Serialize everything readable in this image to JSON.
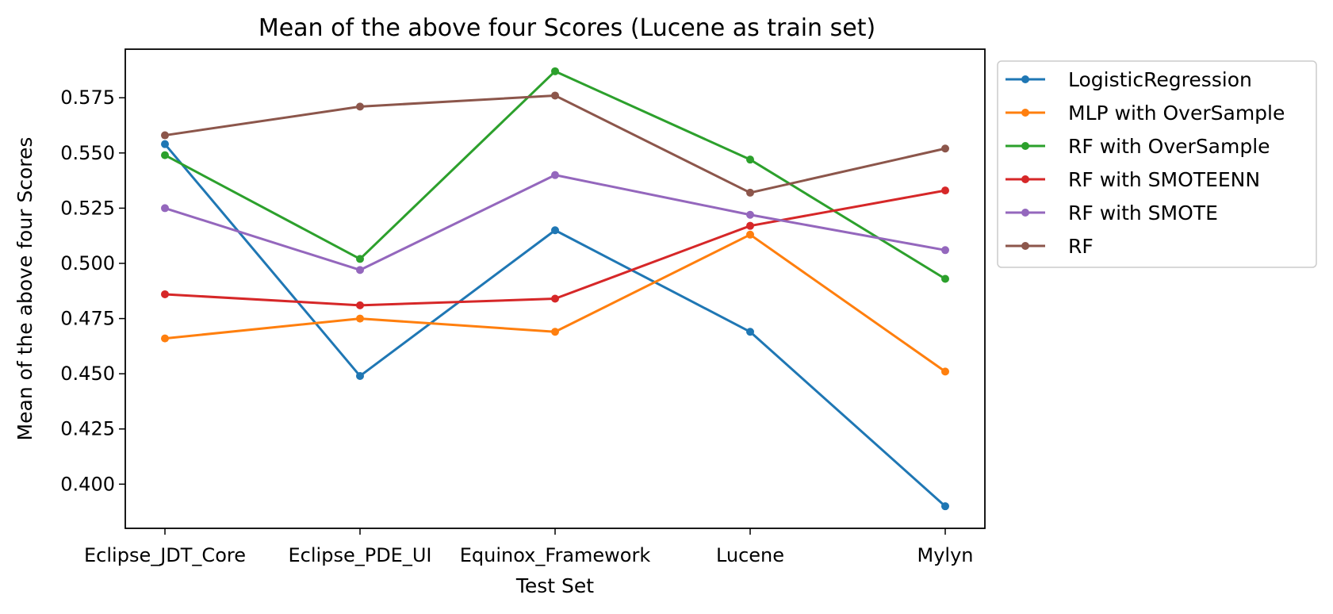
{
  "chart_data": {
    "type": "line",
    "title": "Mean of the above four Scores (Lucene as train set)",
    "xlabel": "Test Set",
    "ylabel": "Mean of the above four Scores",
    "categories": [
      "Eclipse_JDT_Core",
      "Eclipse_PDE_UI",
      "Equinox_Framework",
      "Lucene",
      "Mylyn"
    ],
    "ylim": [
      0.38,
      0.597
    ],
    "yticks": [
      0.4,
      0.425,
      0.45,
      0.475,
      0.5,
      0.525,
      0.55,
      0.575
    ],
    "ytick_labels": [
      "0.400",
      "0.425",
      "0.450",
      "0.475",
      "0.500",
      "0.525",
      "0.550",
      "0.575"
    ],
    "grid": false,
    "legend_position": "outside-right-top",
    "series": [
      {
        "name": "LogisticRegression",
        "color": "#1f77b4",
        "values": [
          0.554,
          0.449,
          0.515,
          0.469,
          0.39
        ]
      },
      {
        "name": "MLP with OverSample",
        "color": "#ff7f0e",
        "values": [
          0.466,
          0.475,
          0.469,
          0.513,
          0.451
        ]
      },
      {
        "name": "RF with OverSample",
        "color": "#2ca02c",
        "values": [
          0.549,
          0.502,
          0.587,
          0.547,
          0.493
        ]
      },
      {
        "name": "RF with SMOTEENN",
        "color": "#d62728",
        "values": [
          0.486,
          0.481,
          0.484,
          0.517,
          0.533
        ]
      },
      {
        "name": "RF with SMOTE",
        "color": "#9467bd",
        "values": [
          0.525,
          0.497,
          0.54,
          0.522,
          0.506
        ]
      },
      {
        "name": "RF",
        "color": "#8c564b",
        "values": [
          0.558,
          0.571,
          0.576,
          0.532,
          0.552
        ]
      }
    ]
  }
}
